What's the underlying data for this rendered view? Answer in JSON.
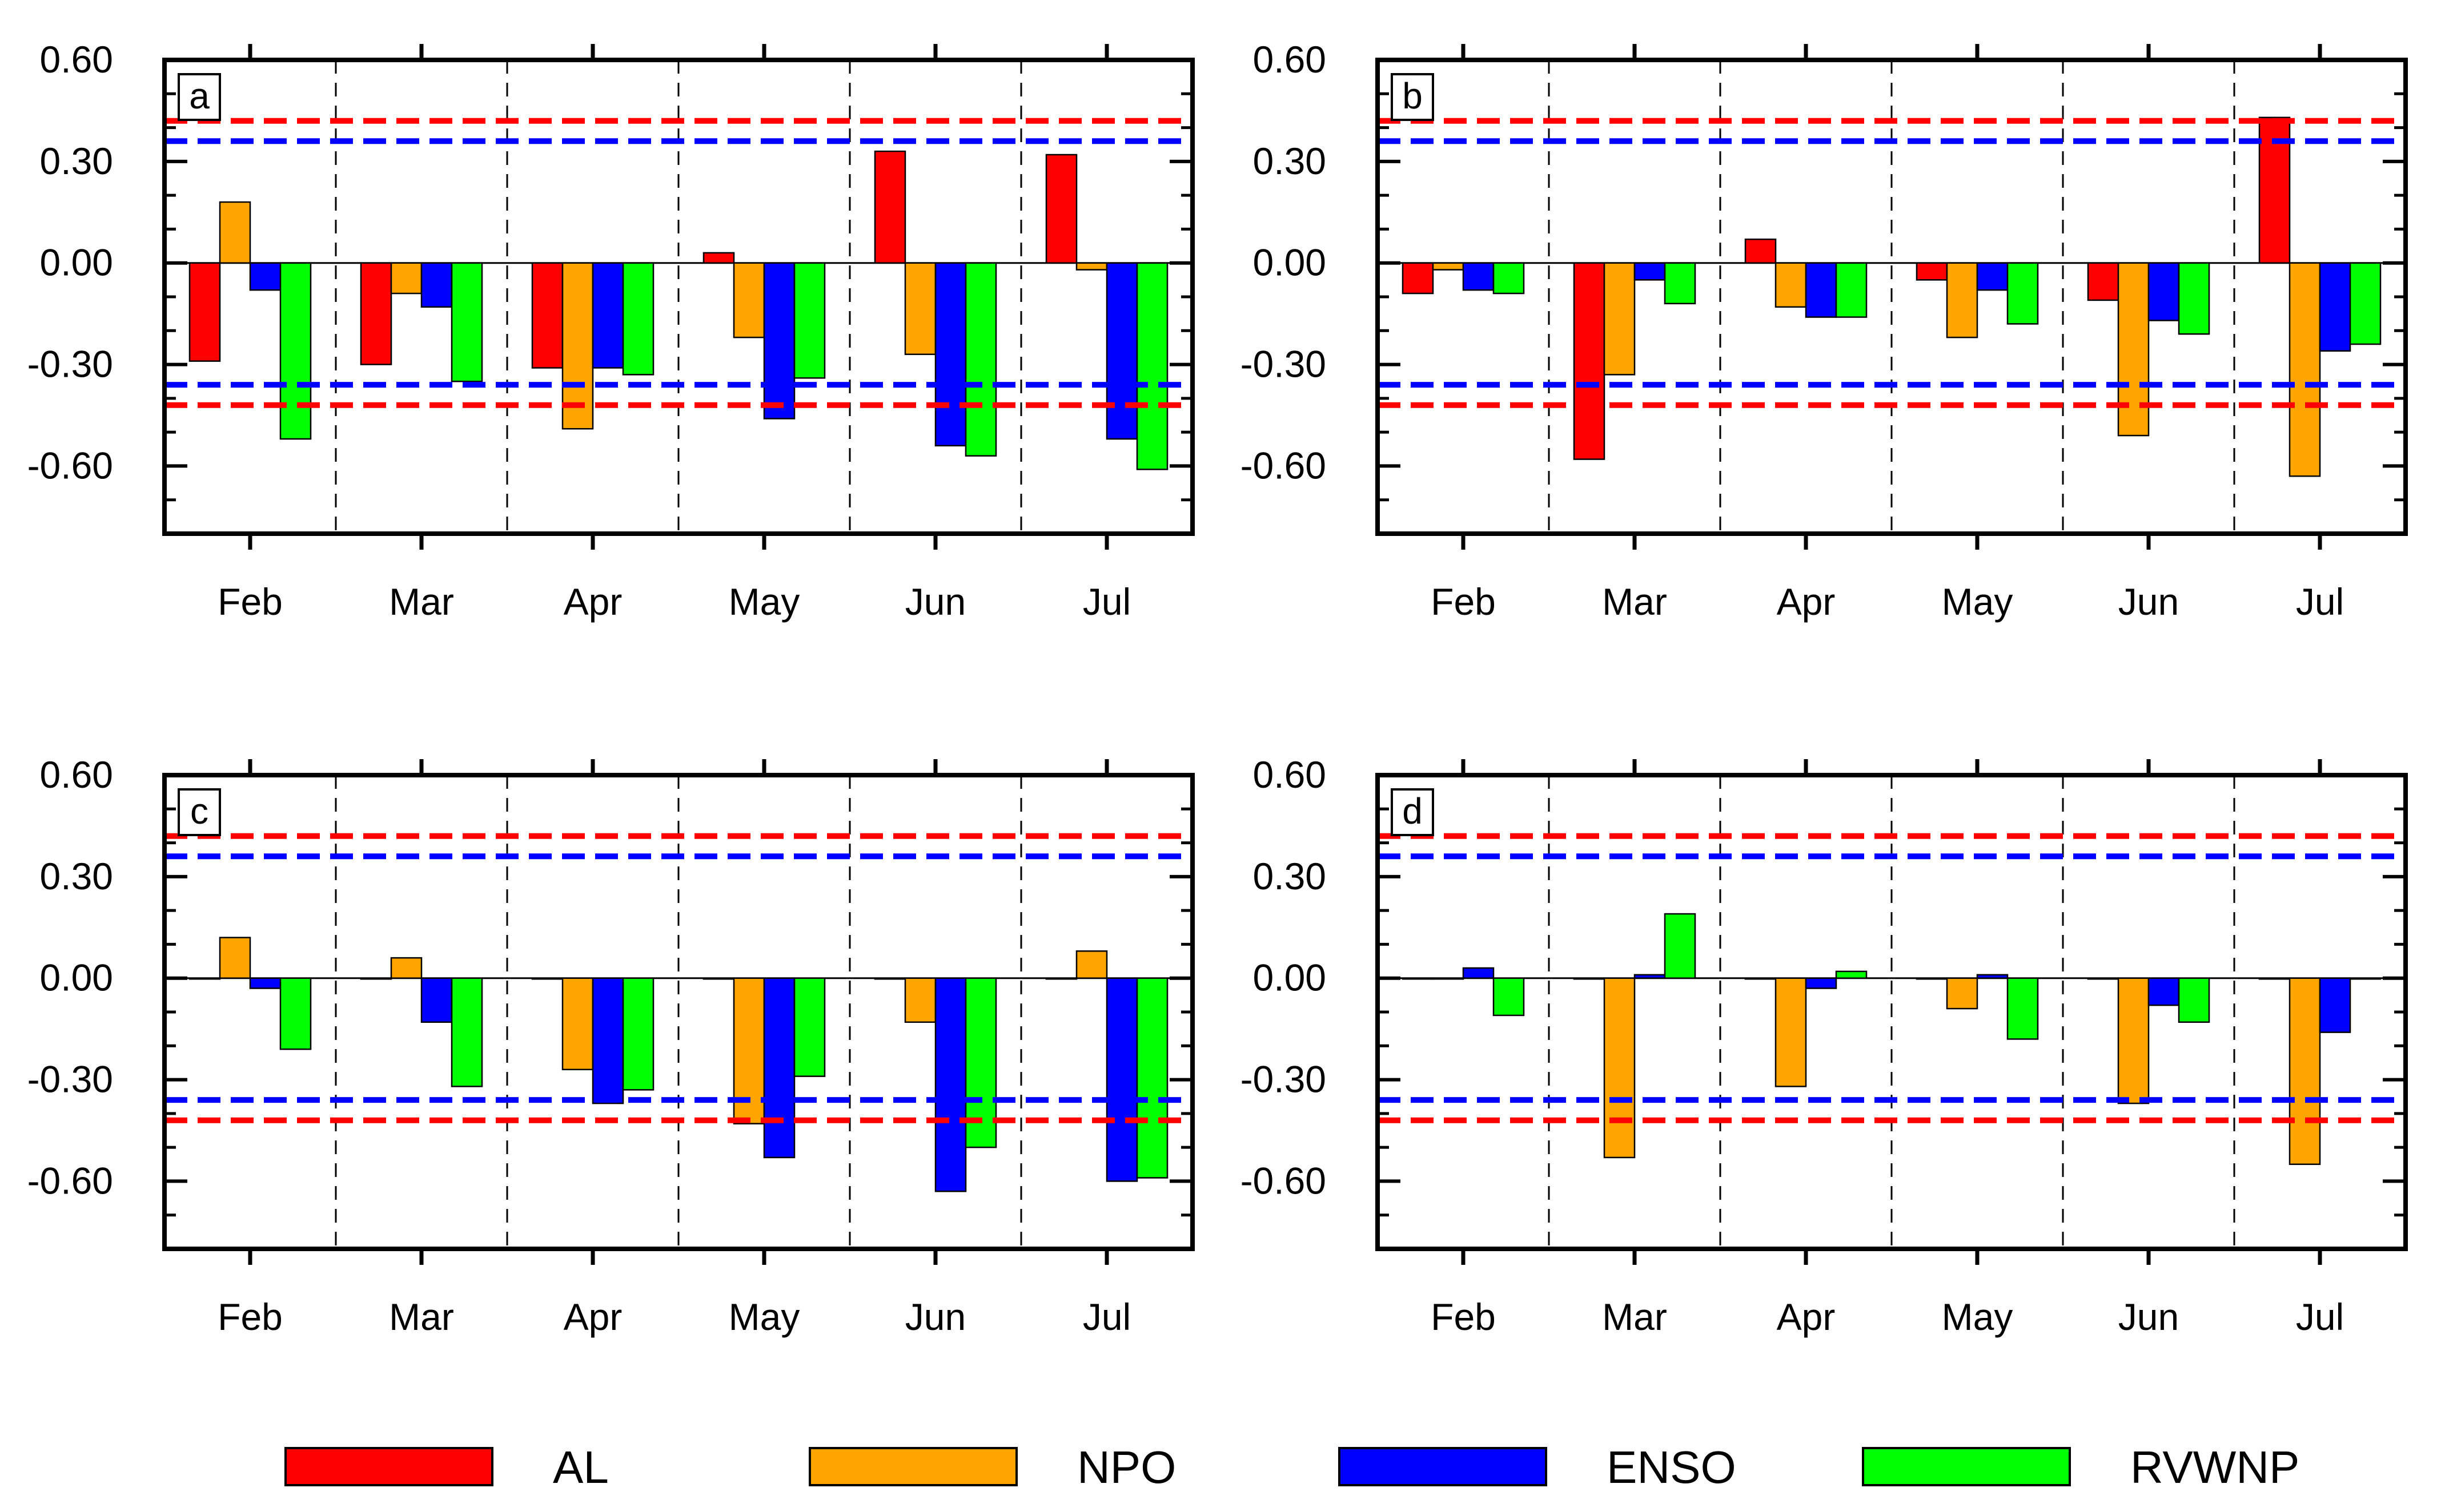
{
  "figure": {
    "colors": {
      "AL": "#ff0000",
      "NPO": "#ffa500",
      "ENSO": "#0000ff",
      "RVWNP": "#00ff00",
      "sig_red": "#ff0000",
      "sig_blue": "#0000ff"
    },
    "legend": [
      "AL",
      "NPO",
      "ENSO",
      "RVWNP"
    ]
  },
  "chart_data": [
    {
      "panel": "a",
      "type": "bar",
      "categories": [
        "Feb",
        "Mar",
        "Apr",
        "May",
        "Jun",
        "Jul"
      ],
      "yticks": [
        "0.60",
        "0.30",
        "0.00",
        "-0.30",
        "-0.60"
      ],
      "ylim": [
        -0.8,
        0.6
      ],
      "reference_lines": [
        0.42,
        0.36,
        -0.36,
        -0.42
      ],
      "series": [
        {
          "name": "AL",
          "values": [
            -0.29,
            -0.3,
            -0.31,
            0.03,
            0.33,
            0.32
          ]
        },
        {
          "name": "NPO",
          "values": [
            0.18,
            -0.09,
            -0.49,
            -0.22,
            -0.27,
            -0.02
          ]
        },
        {
          "name": "ENSO",
          "values": [
            -0.08,
            -0.13,
            -0.31,
            -0.46,
            -0.54,
            -0.52
          ]
        },
        {
          "name": "RVWNP",
          "values": [
            -0.52,
            -0.35,
            -0.33,
            -0.34,
            -0.57,
            -0.61
          ]
        }
      ]
    },
    {
      "panel": "b",
      "type": "bar",
      "categories": [
        "Feb",
        "Mar",
        "Apr",
        "May",
        "Jun",
        "Jul"
      ],
      "yticks": [
        "0.60",
        "0.30",
        "0.00",
        "-0.30",
        "-0.60"
      ],
      "ylim": [
        -0.8,
        0.6
      ],
      "reference_lines": [
        0.42,
        0.36,
        -0.36,
        -0.42
      ],
      "series": [
        {
          "name": "AL",
          "values": [
            -0.09,
            -0.58,
            0.07,
            -0.05,
            -0.11,
            0.43
          ]
        },
        {
          "name": "NPO",
          "values": [
            -0.02,
            -0.33,
            -0.13,
            -0.22,
            -0.51,
            -0.63
          ]
        },
        {
          "name": "ENSO",
          "values": [
            -0.08,
            -0.05,
            -0.16,
            -0.08,
            -0.17,
            -0.26
          ]
        },
        {
          "name": "RVWNP",
          "values": [
            -0.09,
            -0.12,
            -0.16,
            -0.18,
            -0.21,
            -0.24
          ]
        }
      ]
    },
    {
      "panel": "c",
      "type": "bar",
      "categories": [
        "Feb",
        "Mar",
        "Apr",
        "May",
        "Jun",
        "Jul"
      ],
      "yticks": [
        "0.60",
        "0.30",
        "0.00",
        "-0.30",
        "-0.60"
      ],
      "ylim": [
        -0.8,
        0.6
      ],
      "reference_lines": [
        0.42,
        0.36,
        -0.36,
        -0.42
      ],
      "series": [
        {
          "name": "AL",
          "values": [
            0.0,
            0.0,
            0.0,
            0.0,
            0.0,
            0.0
          ]
        },
        {
          "name": "NPO",
          "values": [
            0.12,
            0.06,
            -0.27,
            -0.43,
            -0.13,
            0.08
          ]
        },
        {
          "name": "ENSO",
          "values": [
            -0.03,
            -0.13,
            -0.37,
            -0.53,
            -0.63,
            -0.6
          ]
        },
        {
          "name": "RVWNP",
          "values": [
            -0.21,
            -0.32,
            -0.33,
            -0.29,
            -0.5,
            -0.59
          ]
        }
      ]
    },
    {
      "panel": "d",
      "type": "bar",
      "categories": [
        "Feb",
        "Mar",
        "Apr",
        "May",
        "Jun",
        "Jul"
      ],
      "yticks": [
        "0.60",
        "0.30",
        "0.00",
        "-0.30",
        "-0.60"
      ],
      "ylim": [
        -0.8,
        0.6
      ],
      "reference_lines": [
        0.42,
        0.36,
        -0.36,
        -0.42
      ],
      "series": [
        {
          "name": "AL",
          "values": [
            0.0,
            0.0,
            0.0,
            0.0,
            0.0,
            0.0
          ]
        },
        {
          "name": "NPO",
          "values": [
            0.0,
            -0.53,
            -0.32,
            -0.09,
            -0.37,
            -0.55
          ]
        },
        {
          "name": "ENSO",
          "values": [
            0.03,
            0.01,
            -0.03,
            0.01,
            -0.08,
            -0.16
          ]
        },
        {
          "name": "RVWNP",
          "values": [
            -0.11,
            0.19,
            0.02,
            -0.18,
            -0.13,
            0.0
          ]
        }
      ]
    }
  ]
}
